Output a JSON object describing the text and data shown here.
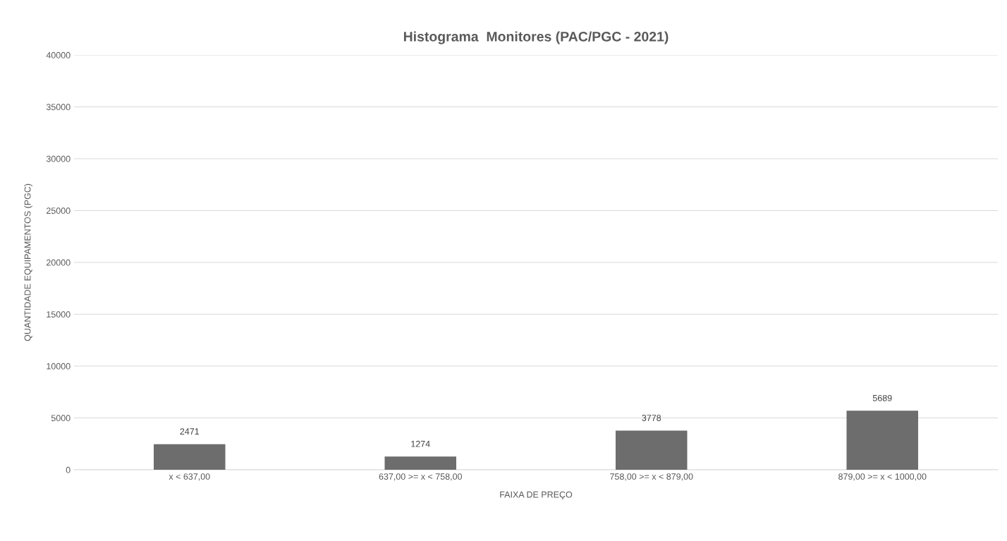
{
  "chart_data": {
    "type": "bar",
    "title": "Histograma  Monitores (PAC/PGC - 2021)",
    "xlabel": "FAIXA DE PREÇO",
    "ylabel": "QUANTIDADE EQUIPAMENTOS (PGC)",
    "categories": [
      "x < 637,00",
      "637,00 >= x < 758,00",
      "758,00 >= x < 879,00",
      "879,00 >= x < 1000,00"
    ],
    "values": [
      2471,
      1274,
      3778,
      5689
    ],
    "color": "#6d6d6d",
    "ylim": [
      0,
      40000
    ],
    "yticks": [
      0,
      5000,
      10000,
      15000,
      20000,
      25000,
      30000,
      35000,
      40000
    ],
    "grid": "y",
    "data_labels": true
  }
}
